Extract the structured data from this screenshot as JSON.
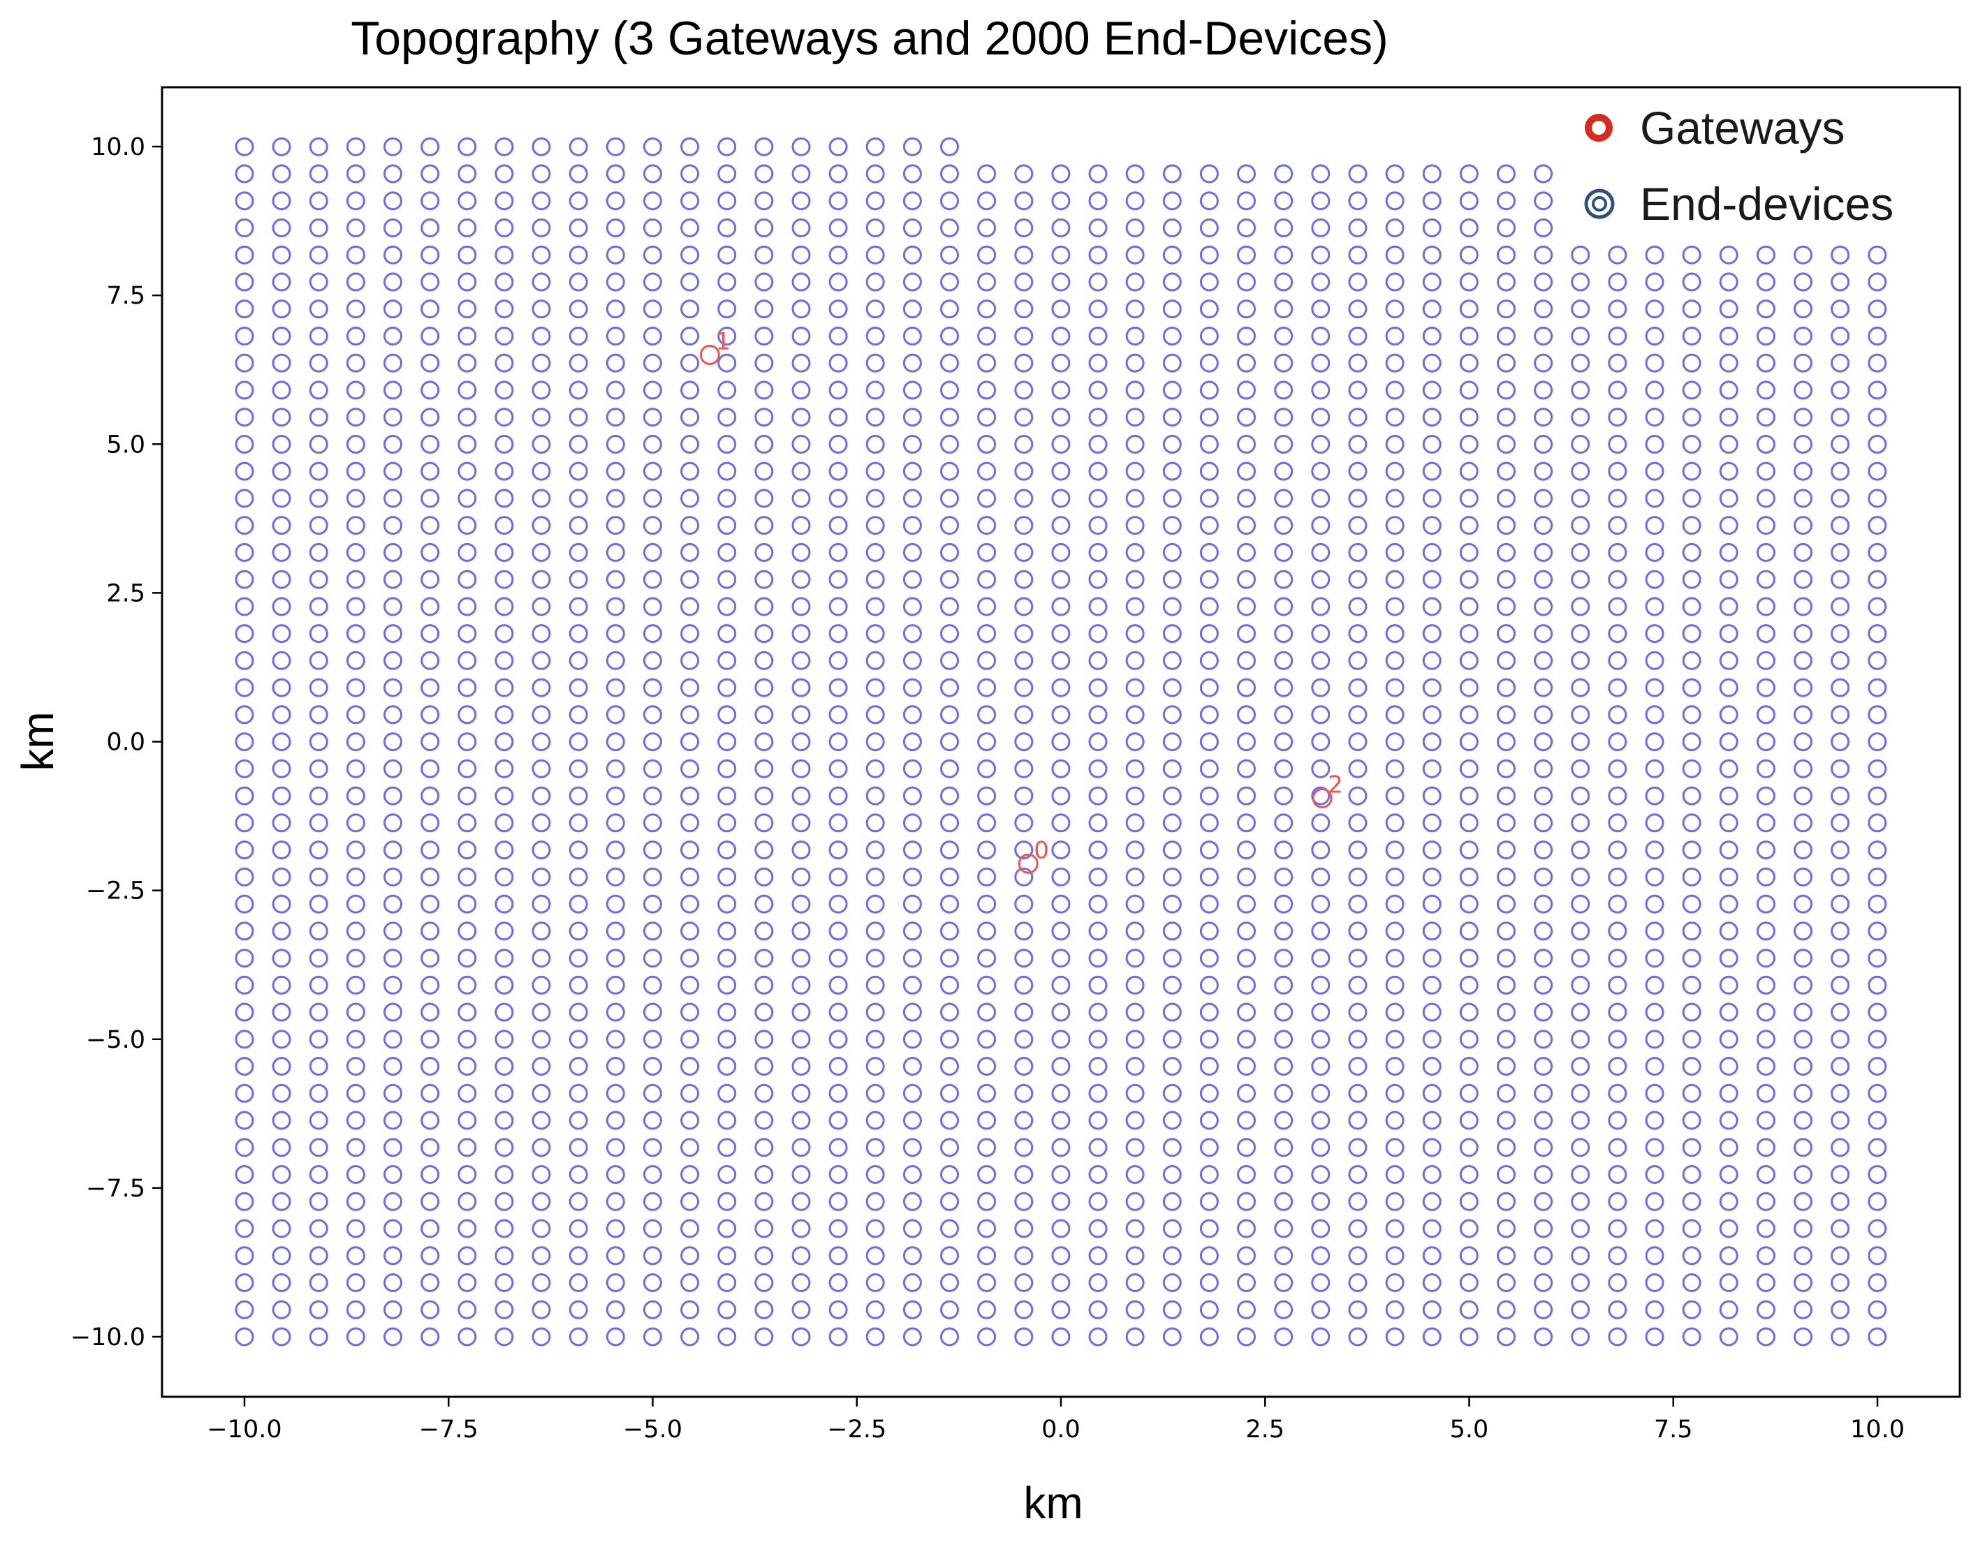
{
  "chart_data": {
    "type": "scatter",
    "title": "Topography (3 Gateways and 2000 End-Devices)",
    "xlabel": "km",
    "ylabel": "km",
    "xlim": [
      -11.0,
      11.0
    ],
    "ylim": [
      -11.0,
      11.0
    ],
    "xticks": [
      -10.0,
      -7.5,
      -5.0,
      -2.5,
      0.0,
      2.5,
      5.0,
      7.5,
      10.0
    ],
    "xtick_labels": [
      "−10.0",
      "−7.5",
      "−5.0",
      "−2.5",
      "0.0",
      "2.5",
      "5.0",
      "7.5",
      "10.0"
    ],
    "yticks": [
      10.0,
      7.5,
      5.0,
      2.5,
      0.0,
      -2.5,
      -5.0,
      -7.5,
      -10.0
    ],
    "ytick_labels": [
      "10.0",
      "7.5",
      "5.0",
      "2.5",
      "0.0",
      "−2.5",
      "−5.0",
      "−7.5",
      "−10.0"
    ],
    "grid": false,
    "legend_position": "top-right",
    "legend": [
      {
        "label": "Gateways",
        "marker": "ring",
        "color": "#d62b1f"
      },
      {
        "label": "End-devices",
        "marker": "double-ring",
        "color": "#2c4f7c"
      }
    ],
    "series": [
      {
        "name": "End-devices",
        "marker": "open-circle",
        "color": "#6b6bf0",
        "grid_layout": {
          "x_start": -10.0,
          "x_step": 0.4545,
          "columns": 45,
          "y_start": -10.0,
          "y_step": 0.4545,
          "column_top_y": [
            [
              0,
              19,
              10.0
            ],
            [
              20,
              35,
              9.545
            ],
            [
              36,
              44,
              8.182
            ]
          ]
        },
        "count": 2000
      },
      {
        "name": "Gateways",
        "marker": "open-circle",
        "color": "#f05555",
        "points": [
          {
            "id": "0",
            "x": -0.4,
            "y": -2.05
          },
          {
            "id": "1",
            "x": -4.3,
            "y": 6.5
          },
          {
            "id": "2",
            "x": 3.2,
            "y": -0.95
          }
        ]
      }
    ]
  }
}
